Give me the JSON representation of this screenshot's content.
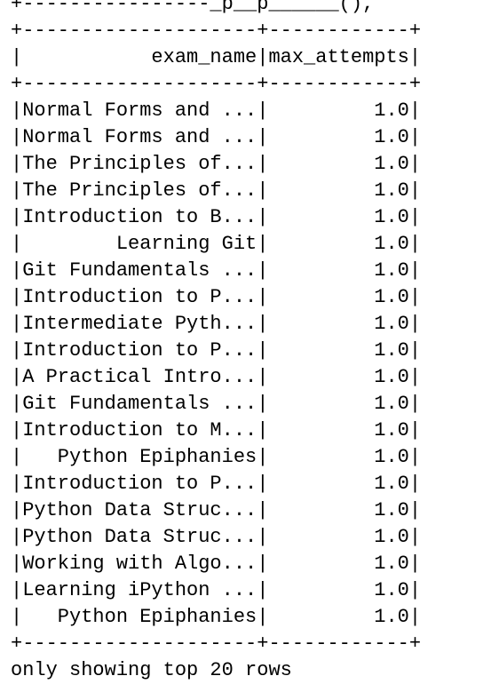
{
  "console": {
    "top_fragment": "+----------------_p__p______(),",
    "lines": [
      "+--------------------+------------+",
      "|           exam_name|max_attempts|",
      "+--------------------+------------+",
      "|Normal Forms and ...|         1.0|",
      "|Normal Forms and ...|         1.0|",
      "|The Principles of...|         1.0|",
      "|The Principles of...|         1.0|",
      "|Introduction to B...|         1.0|",
      "|        Learning Git|         1.0|",
      "|Git Fundamentals ...|         1.0|",
      "|Introduction to P...|         1.0|",
      "|Intermediate Pyth...|         1.0|",
      "|Introduction to P...|         1.0|",
      "|A Practical Intro...|         1.0|",
      "|Git Fundamentals ...|         1.0|",
      "|Introduction to M...|         1.0|",
      "|   Python Epiphanies|         1.0|",
      "|Introduction to P...|         1.0|",
      "|Python Data Struc...|         1.0|",
      "|Python Data Struc...|         1.0|",
      "|Working with Algo...|         1.0|",
      "|Learning iPython ...|         1.0|",
      "|   Python Epiphanies|         1.0|",
      "+--------------------+------------+",
      "only showing top 20 rows"
    ]
  }
}
